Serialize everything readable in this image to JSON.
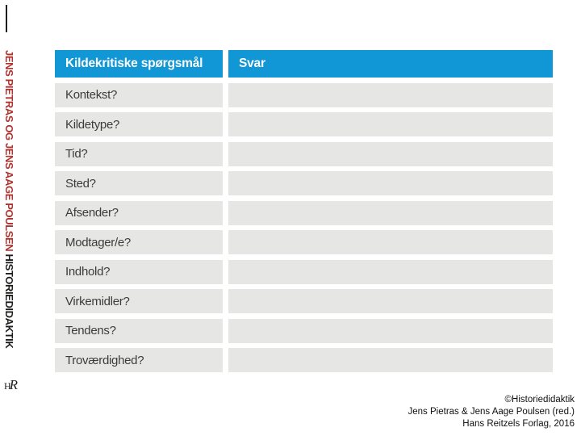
{
  "slide": {
    "colors": {
      "header_bg": "#1197d5",
      "row_bg": "#e6e6e4",
      "accent_red": "#b0322e"
    },
    "spine": {
      "authors": "JENS PIETRAS OG JENS AAGE POULSEN",
      "series": "HISTORIEDIDAKTIK"
    },
    "logo": {
      "h": "H",
      "r": "R"
    },
    "table": {
      "header": {
        "question_col": "Kildekritiske spørgsmål",
        "answer_col": "Svar"
      },
      "rows": [
        {
          "question": "Kontekst?",
          "answer": ""
        },
        {
          "question": "Kildetype?",
          "answer": ""
        },
        {
          "question": "Tid?",
          "answer": ""
        },
        {
          "question": "Sted?",
          "answer": ""
        },
        {
          "question": "Afsender?",
          "answer": ""
        },
        {
          "question": "Modtager/e?",
          "answer": ""
        },
        {
          "question": "Indhold?",
          "answer": ""
        },
        {
          "question": "Virkemidler?",
          "answer": ""
        },
        {
          "question": "Tendens?",
          "answer": ""
        },
        {
          "question": "Troværdighed?",
          "answer": ""
        }
      ]
    },
    "credits": {
      "line1": "©Historiedidaktik",
      "line2": "Jens Pietras & Jens Aage Poulsen (red.)",
      "line3": "Hans Reitzels Forlag, 2016"
    }
  }
}
